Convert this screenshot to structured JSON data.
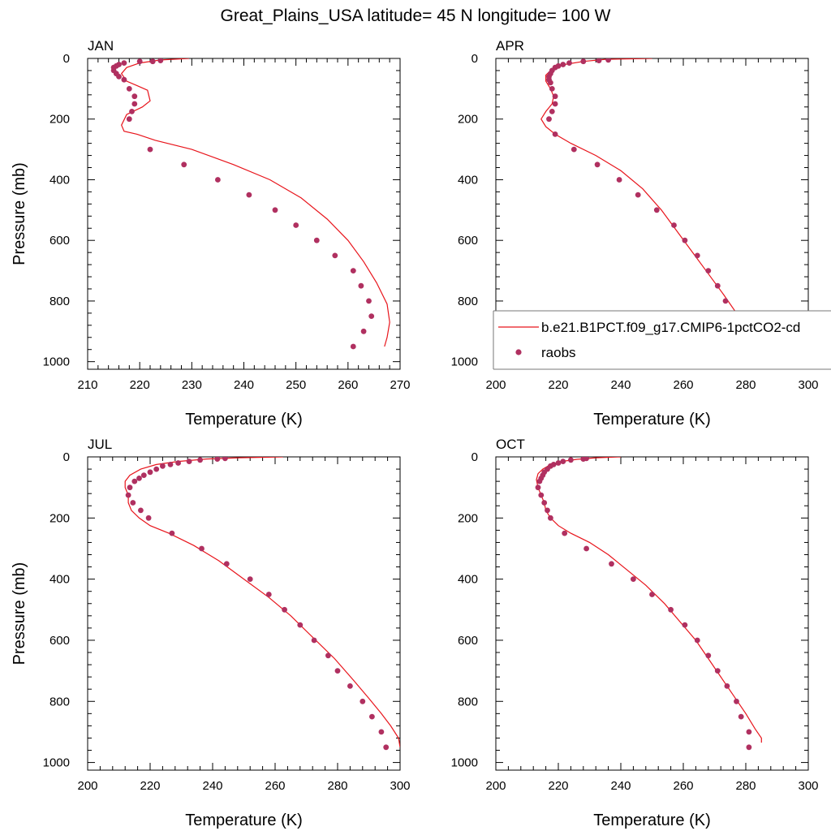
{
  "title": "Great_Plains_USA  latitude= 45 N longitude= 100 W",
  "legend": {
    "model_label": "b.e21.B1PCT.f09_g17.CMIP6-1pctCO2-cd",
    "obs_label": "raobs",
    "model_color": "#e8141b",
    "obs_color": "#b03060"
  },
  "chart_data": [
    {
      "type": "line",
      "panel": "JAN",
      "xlabel": "Temperature (K)",
      "ylabel": "Pressure (mb)",
      "xlim": [
        210,
        270
      ],
      "xticks": [
        210,
        220,
        230,
        240,
        250,
        260,
        270
      ],
      "ylim": [
        1000,
        0
      ],
      "yticks": [
        0,
        200,
        400,
        600,
        800,
        1000
      ],
      "series": [
        {
          "kind": "line",
          "x": [
            229.5,
            224,
            220,
            217.5,
            216.5,
            217.5,
            219.5,
            221.5,
            222,
            220.5,
            217.5,
            216.5,
            217,
            219.5,
            223,
            230,
            238,
            245,
            251,
            256,
            260,
            263,
            265.5,
            267.5,
            268,
            267.5,
            267
          ],
          "y": [
            0,
            5,
            15,
            30,
            50,
            75,
            90,
            105,
            140,
            160,
            185,
            220,
            240,
            250,
            270,
            300,
            350,
            400,
            460,
            530,
            600,
            670,
            740,
            810,
            870,
            920,
            950
          ]
        },
        {
          "kind": "scatter",
          "x": [
            224,
            222.5,
            220,
            217,
            216,
            215.5,
            215,
            215,
            215.5,
            216,
            217,
            218,
            219,
            219,
            218.5,
            218,
            222,
            228.5,
            235,
            241,
            246,
            250,
            254,
            257.5,
            261,
            262.5,
            264,
            264.5,
            263,
            261
          ],
          "y": [
            7,
            10,
            10,
            15,
            20,
            25,
            30,
            40,
            50,
            60,
            70,
            100,
            125,
            150,
            175,
            200,
            300,
            350,
            400,
            450,
            500,
            550,
            600,
            650,
            700,
            750,
            800,
            850,
            900,
            950
          ]
        }
      ]
    },
    {
      "type": "line",
      "panel": "APR",
      "xlabel": "Temperature (K)",
      "ylabel": "",
      "xlim": [
        200,
        300
      ],
      "xticks": [
        200,
        220,
        240,
        260,
        280,
        300
      ],
      "ylim": [
        1000,
        0
      ],
      "yticks": [
        0,
        200,
        400,
        600,
        800,
        1000
      ],
      "series": [
        {
          "kind": "line",
          "x": [
            250,
            235,
            228,
            222,
            218,
            216,
            216,
            217.5,
            218.5,
            218,
            216,
            214.5,
            216,
            219,
            224,
            232,
            240,
            247,
            253,
            258,
            263,
            268,
            273,
            277,
            280,
            283,
            284
          ],
          "y": [
            0,
            3,
            10,
            20,
            35,
            55,
            75,
            100,
            125,
            150,
            175,
            200,
            225,
            250,
            280,
            320,
            370,
            430,
            500,
            570,
            640,
            710,
            780,
            840,
            880,
            920,
            950
          ]
        },
        {
          "kind": "scatter",
          "x": [
            236,
            233,
            228,
            223.5,
            221.5,
            220,
            219,
            218,
            217.5,
            217,
            217,
            217.5,
            218,
            219,
            219,
            218,
            217,
            219,
            225,
            232.5,
            239.5,
            245.5,
            251.5,
            257,
            260.5,
            264.5,
            268,
            271,
            273.5,
            276,
            278,
            279.5
          ],
          "y": [
            5,
            7,
            10,
            15,
            20,
            25,
            30,
            40,
            50,
            60,
            70,
            80,
            100,
            125,
            150,
            175,
            200,
            250,
            300,
            350,
            400,
            450,
            500,
            550,
            600,
            650,
            700,
            750,
            800,
            850,
            900,
            950
          ]
        }
      ]
    },
    {
      "type": "line",
      "panel": "JUL",
      "xlabel": "Temperature (K)",
      "ylabel": "Pressure (mb)",
      "xlim": [
        200,
        300
      ],
      "xticks": [
        200,
        220,
        240,
        260,
        280,
        300
      ],
      "ylim": [
        1000,
        0
      ],
      "yticks": [
        0,
        200,
        400,
        600,
        800,
        1000
      ],
      "series": [
        {
          "kind": "line",
          "x": [
            262.5,
            248,
            238,
            229,
            222,
            217,
            213.5,
            212,
            212,
            213,
            213,
            214,
            216.5,
            220,
            226,
            234,
            242,
            250,
            258,
            265,
            272,
            279,
            285,
            290,
            294,
            297,
            299.5,
            300
          ],
          "y": [
            0,
            3,
            7,
            15,
            25,
            40,
            60,
            80,
            100,
            125,
            150,
            175,
            200,
            225,
            250,
            290,
            340,
            400,
            460,
            520,
            590,
            660,
            730,
            790,
            840,
            880,
            920,
            950
          ]
        },
        {
          "kind": "scatter",
          "x": [
            244,
            241.5,
            236,
            232.5,
            229,
            226.5,
            224,
            222,
            220,
            218,
            216.5,
            215,
            213.5,
            213,
            214.5,
            217,
            219.5,
            227,
            236.5,
            244.5,
            252,
            258,
            263,
            268,
            272.5,
            277,
            280,
            284,
            288,
            291,
            294,
            295.5
          ],
          "y": [
            5,
            7,
            10,
            15,
            20,
            25,
            30,
            40,
            50,
            60,
            70,
            80,
            100,
            125,
            150,
            175,
            200,
            250,
            300,
            350,
            400,
            450,
            500,
            550,
            600,
            650,
            700,
            750,
            800,
            850,
            900,
            950
          ]
        }
      ]
    },
    {
      "type": "line",
      "panel": "OCT",
      "xlabel": "Temperature (K)",
      "ylabel": "",
      "xlim": [
        200,
        300
      ],
      "xticks": [
        200,
        220,
        240,
        260,
        280,
        300
      ],
      "ylim": [
        1000,
        0
      ],
      "yticks": [
        0,
        200,
        400,
        600,
        800,
        1000
      ],
      "series": [
        {
          "kind": "line",
          "x": [
            240,
            232,
            226,
            221,
            217.5,
            215,
            213.5,
            213,
            213.5,
            214.5,
            215.5,
            216,
            217.5,
            220,
            224,
            230,
            236,
            242,
            248,
            254,
            259,
            264,
            268,
            272,
            276,
            280,
            283,
            285,
            285
          ],
          "y": [
            0,
            3,
            8,
            15,
            25,
            40,
            55,
            75,
            100,
            125,
            150,
            175,
            200,
            225,
            250,
            280,
            320,
            370,
            420,
            480,
            540,
            600,
            660,
            720,
            780,
            840,
            890,
            920,
            935
          ]
        },
        {
          "kind": "scatter",
          "x": [
            229,
            228,
            224,
            221.5,
            220,
            218.5,
            217.5,
            216.5,
            215.5,
            215,
            214.5,
            214,
            213.5,
            214.5,
            215.5,
            216.5,
            217.5,
            222,
            229,
            237,
            244,
            250,
            256,
            260.5,
            264.5,
            268,
            271,
            274,
            277,
            278.5,
            281,
            281
          ],
          "y": [
            5,
            7,
            10,
            15,
            20,
            25,
            30,
            40,
            50,
            60,
            70,
            80,
            100,
            125,
            150,
            175,
            200,
            250,
            300,
            350,
            400,
            450,
            500,
            550,
            600,
            650,
            700,
            750,
            800,
            850,
            900,
            950
          ]
        }
      ]
    }
  ]
}
